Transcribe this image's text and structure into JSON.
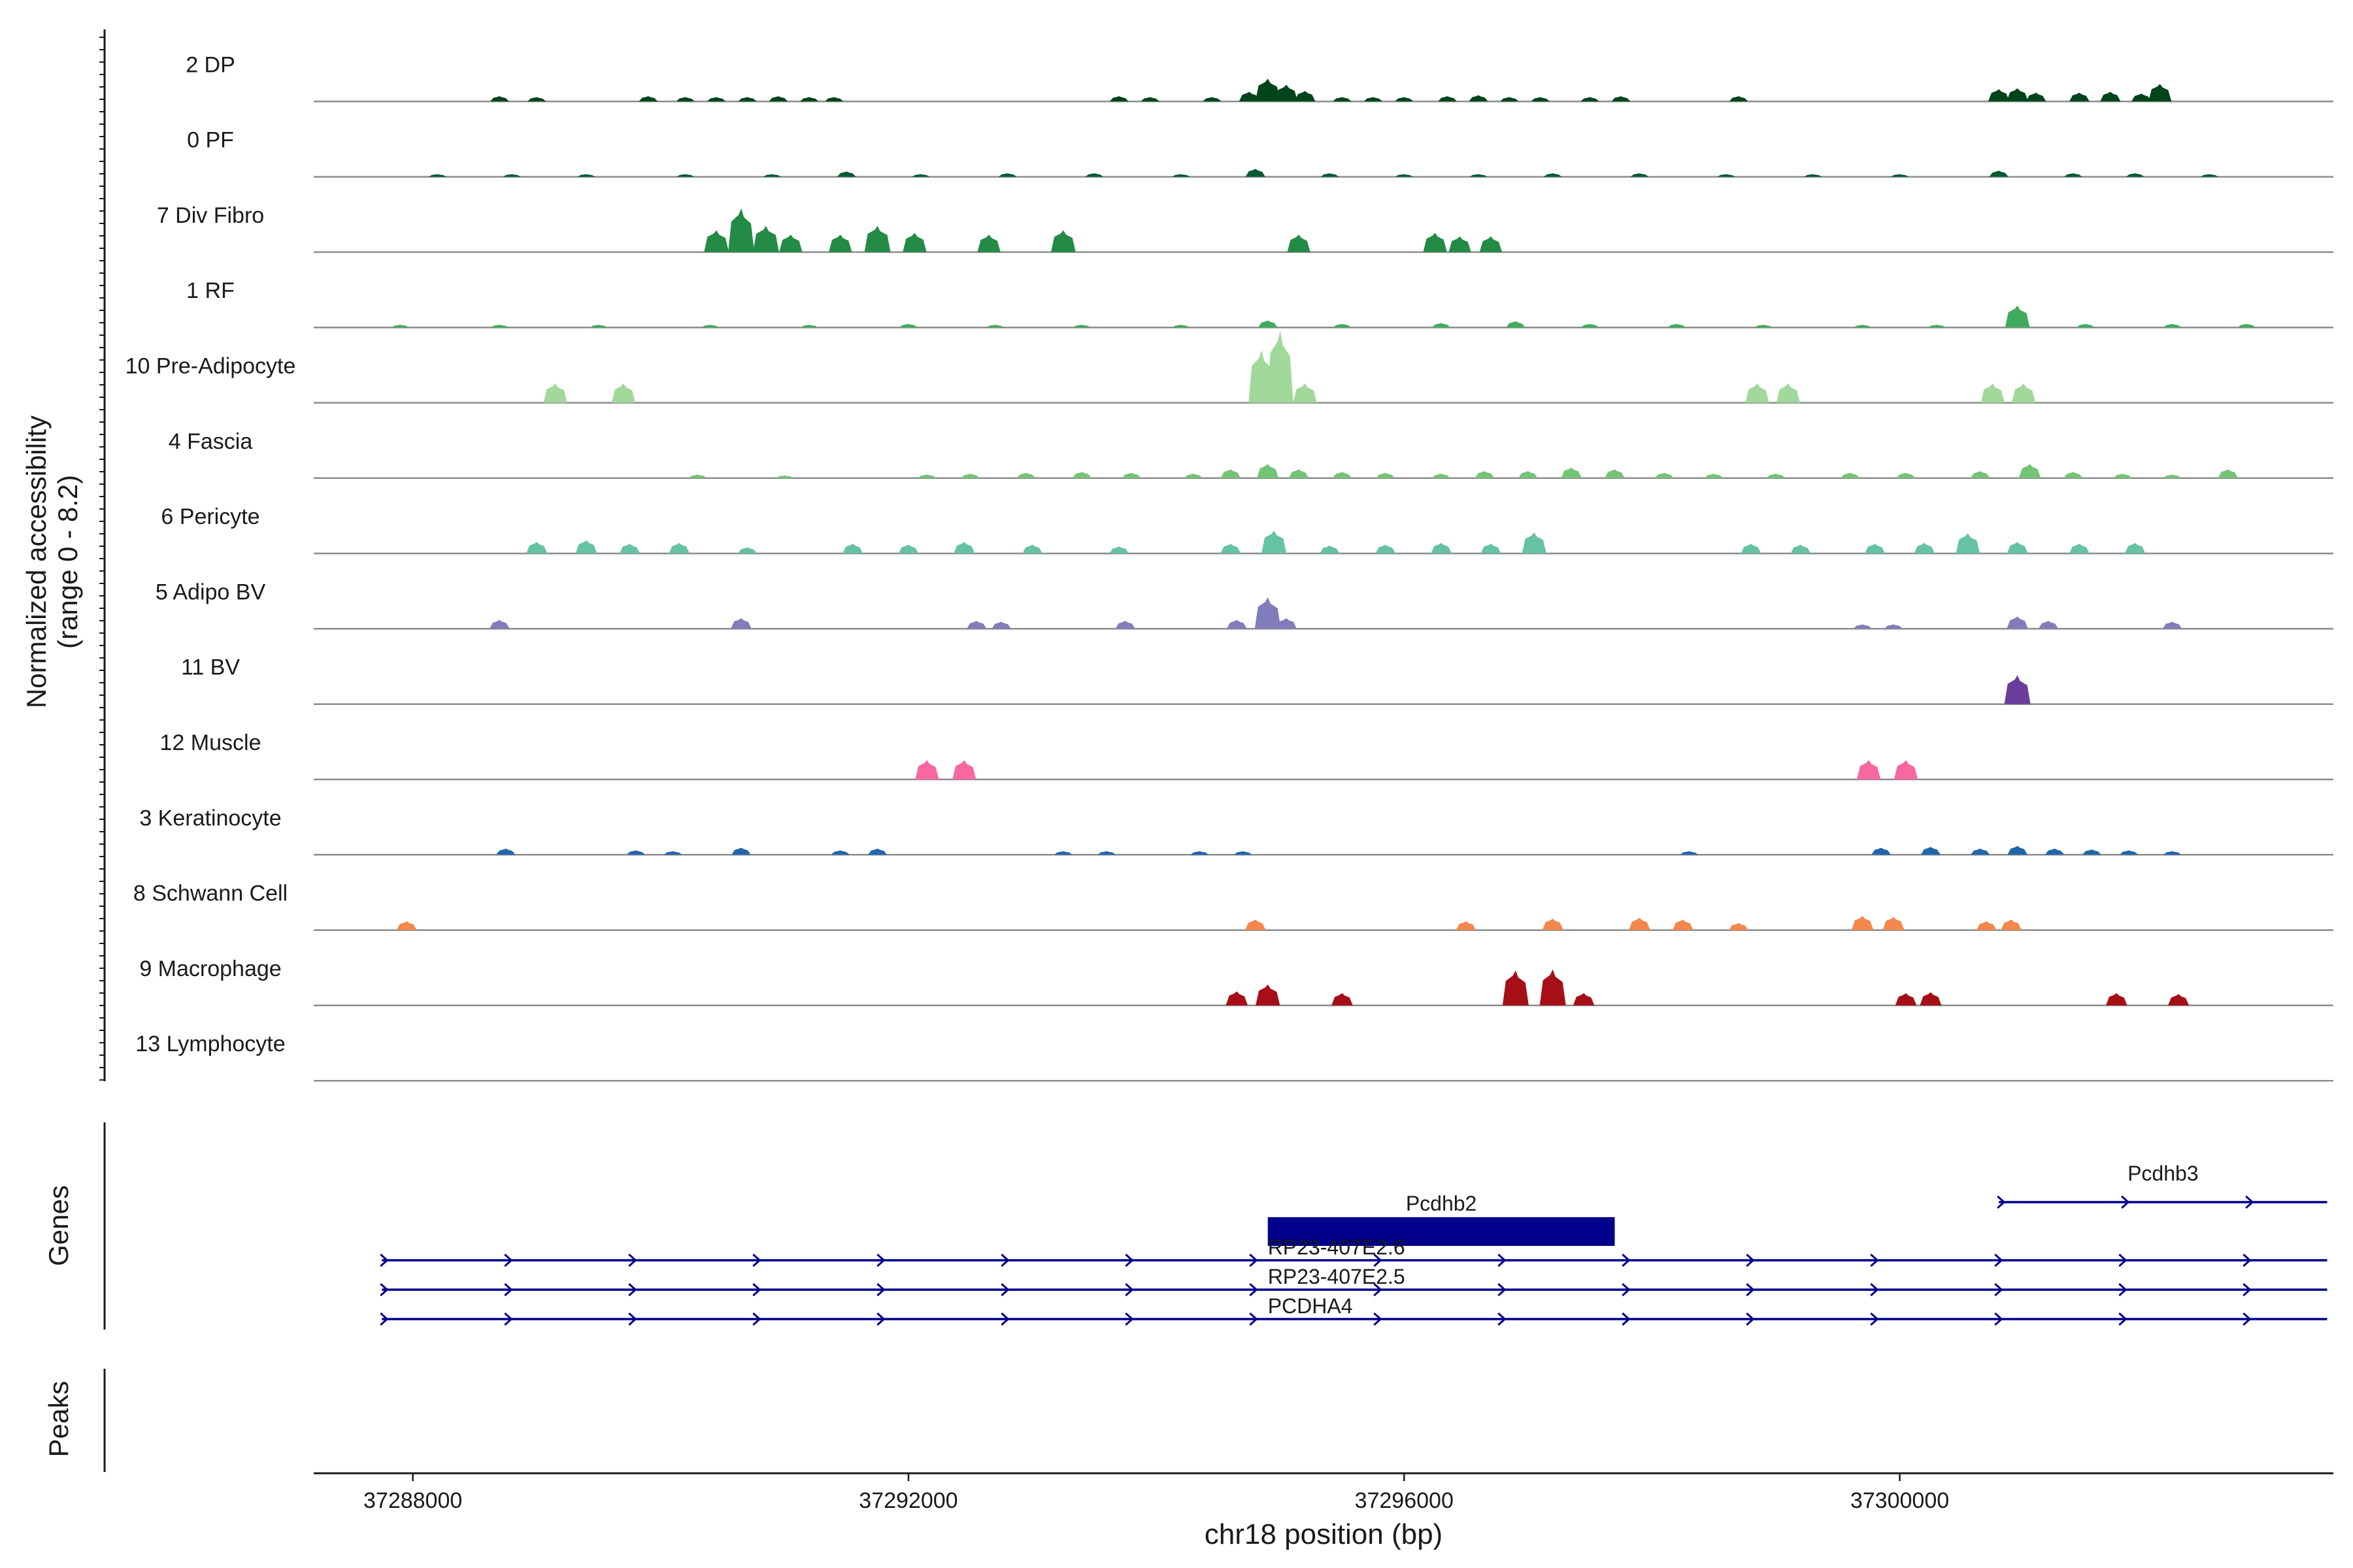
{
  "chart_data": {
    "type": "area",
    "title": "",
    "ylabel": "Normalized accessibility\n(range 0 - 8.2)",
    "xlabel": "chr18 position (bp)",
    "xlim": [
      37287200,
      37303500
    ],
    "ylim": [
      0,
      8.2
    ],
    "x_ticks": [
      37288000,
      37292000,
      37296000,
      37300000
    ],
    "x_tick_labels": [
      "37288000",
      "37292000",
      "37296000",
      "37300000"
    ],
    "tracks": [
      {
        "name": "2 DP",
        "color": "#00441b",
        "peaks": [
          [
            37288700,
            0.6
          ],
          [
            37289000,
            0.5
          ],
          [
            37289900,
            0.6
          ],
          [
            37290200,
            0.5
          ],
          [
            37290450,
            0.5
          ],
          [
            37290700,
            0.5
          ],
          [
            37290950,
            0.6
          ],
          [
            37291200,
            0.5
          ],
          [
            37291400,
            0.5
          ],
          [
            37293700,
            0.6
          ],
          [
            37293950,
            0.5
          ],
          [
            37294450,
            0.5
          ],
          [
            37294750,
            1.1
          ],
          [
            37294900,
            2.6
          ],
          [
            37295050,
            1.9
          ],
          [
            37295200,
            1.2
          ],
          [
            37295500,
            0.5
          ],
          [
            37295750,
            0.5
          ],
          [
            37296000,
            0.5
          ],
          [
            37296350,
            0.6
          ],
          [
            37296600,
            0.7
          ],
          [
            37296850,
            0.5
          ],
          [
            37297100,
            0.5
          ],
          [
            37297500,
            0.5
          ],
          [
            37297750,
            0.6
          ],
          [
            37298700,
            0.6
          ],
          [
            37300800,
            1.4
          ],
          [
            37300950,
            1.5
          ],
          [
            37301100,
            1.0
          ],
          [
            37301450,
            1.0
          ],
          [
            37301700,
            1.1
          ],
          [
            37301950,
            0.9
          ],
          [
            37302100,
            2.0
          ]
        ]
      },
      {
        "name": "0 PF",
        "color": "#005a32",
        "peaks": [
          [
            37288200,
            0.3
          ],
          [
            37288800,
            0.3
          ],
          [
            37289400,
            0.3
          ],
          [
            37290200,
            0.3
          ],
          [
            37290900,
            0.3
          ],
          [
            37291500,
            0.6
          ],
          [
            37292100,
            0.3
          ],
          [
            37292800,
            0.4
          ],
          [
            37293500,
            0.4
          ],
          [
            37294200,
            0.3
          ],
          [
            37294800,
            0.9
          ],
          [
            37295400,
            0.4
          ],
          [
            37296000,
            0.3
          ],
          [
            37296600,
            0.3
          ],
          [
            37297200,
            0.4
          ],
          [
            37297900,
            0.4
          ],
          [
            37298600,
            0.3
          ],
          [
            37299300,
            0.3
          ],
          [
            37300000,
            0.3
          ],
          [
            37300800,
            0.7
          ],
          [
            37301400,
            0.4
          ],
          [
            37301900,
            0.4
          ],
          [
            37302500,
            0.3
          ]
        ]
      },
      {
        "name": "7 Div Fibro",
        "color": "#238b45",
        "peaks": [
          [
            37290450,
            2.5
          ],
          [
            37290650,
            5.0
          ],
          [
            37290850,
            3.0
          ],
          [
            37291050,
            2.0
          ],
          [
            37291450,
            2.0
          ],
          [
            37291750,
            3.0
          ],
          [
            37292050,
            2.2
          ],
          [
            37292650,
            2.0
          ],
          [
            37293250,
            2.5
          ],
          [
            37295150,
            2.0
          ],
          [
            37296250,
            2.2
          ],
          [
            37296450,
            1.8
          ],
          [
            37296700,
            1.8
          ]
        ]
      },
      {
        "name": "1 RF",
        "color": "#41ab5d",
        "peaks": [
          [
            37287900,
            0.3
          ],
          [
            37288700,
            0.3
          ],
          [
            37289500,
            0.3
          ],
          [
            37290400,
            0.3
          ],
          [
            37291200,
            0.3
          ],
          [
            37292000,
            0.4
          ],
          [
            37292700,
            0.3
          ],
          [
            37293400,
            0.3
          ],
          [
            37294200,
            0.3
          ],
          [
            37294900,
            0.8
          ],
          [
            37295500,
            0.4
          ],
          [
            37296300,
            0.5
          ],
          [
            37296900,
            0.7
          ],
          [
            37297500,
            0.4
          ],
          [
            37298200,
            0.4
          ],
          [
            37298900,
            0.3
          ],
          [
            37299700,
            0.3
          ],
          [
            37300300,
            0.3
          ],
          [
            37300950,
            2.5
          ],
          [
            37301500,
            0.4
          ],
          [
            37302200,
            0.4
          ],
          [
            37302800,
            0.4
          ]
        ]
      },
      {
        "name": "10 Pre-Adipocyte",
        "color": "#a1d99b",
        "peaks": [
          [
            37289150,
            2.2
          ],
          [
            37289700,
            2.2
          ],
          [
            37294850,
            6.0
          ],
          [
            37295000,
            8.2
          ],
          [
            37295200,
            2.2
          ],
          [
            37298850,
            2.2
          ],
          [
            37299100,
            2.2
          ],
          [
            37300750,
            2.2
          ],
          [
            37301000,
            2.2
          ]
        ]
      },
      {
        "name": "4 Fascia",
        "color": "#74c476",
        "peaks": [
          [
            37290300,
            0.4
          ],
          [
            37291000,
            0.3
          ],
          [
            37292150,
            0.4
          ],
          [
            37292500,
            0.5
          ],
          [
            37292950,
            0.6
          ],
          [
            37293400,
            0.7
          ],
          [
            37293800,
            0.6
          ],
          [
            37294300,
            0.5
          ],
          [
            37294600,
            1.0
          ],
          [
            37294900,
            1.6
          ],
          [
            37295150,
            1.0
          ],
          [
            37295500,
            0.7
          ],
          [
            37295850,
            0.6
          ],
          [
            37296300,
            0.5
          ],
          [
            37296650,
            0.8
          ],
          [
            37297000,
            0.8
          ],
          [
            37297350,
            1.2
          ],
          [
            37297700,
            1.0
          ],
          [
            37298100,
            0.6
          ],
          [
            37298500,
            0.5
          ],
          [
            37299000,
            0.5
          ],
          [
            37299600,
            0.6
          ],
          [
            37300050,
            0.6
          ],
          [
            37300650,
            0.8
          ],
          [
            37301050,
            1.6
          ],
          [
            37301400,
            0.7
          ],
          [
            37301800,
            0.5
          ],
          [
            37302200,
            0.4
          ],
          [
            37302650,
            1.0
          ]
        ]
      },
      {
        "name": "6 Pericyte",
        "color": "#66c2a4",
        "peaks": [
          [
            37289000,
            1.3
          ],
          [
            37289400,
            1.5
          ],
          [
            37289750,
            1.1
          ],
          [
            37290150,
            1.2
          ],
          [
            37290700,
            0.7
          ],
          [
            37291550,
            1.1
          ],
          [
            37292000,
            1.0
          ],
          [
            37292450,
            1.3
          ],
          [
            37293000,
            1.0
          ],
          [
            37293700,
            0.8
          ],
          [
            37294600,
            1.1
          ],
          [
            37294950,
            2.6
          ],
          [
            37295400,
            0.9
          ],
          [
            37295850,
            1.0
          ],
          [
            37296300,
            1.2
          ],
          [
            37296700,
            1.1
          ],
          [
            37297050,
            2.4
          ],
          [
            37298800,
            1.1
          ],
          [
            37299200,
            1.0
          ],
          [
            37299800,
            1.1
          ],
          [
            37300200,
            1.2
          ],
          [
            37300550,
            2.3
          ],
          [
            37300950,
            1.3
          ],
          [
            37301450,
            1.1
          ],
          [
            37301900,
            1.2
          ]
        ]
      },
      {
        "name": "5 Adipo BV",
        "color": "#807dba",
        "peaks": [
          [
            37288700,
            1.0
          ],
          [
            37290650,
            1.2
          ],
          [
            37292550,
            0.9
          ],
          [
            37292750,
            0.8
          ],
          [
            37293750,
            0.9
          ],
          [
            37294650,
            1.0
          ],
          [
            37294900,
            3.6
          ],
          [
            37295050,
            1.2
          ],
          [
            37299700,
            0.5
          ],
          [
            37299950,
            0.5
          ],
          [
            37300950,
            1.4
          ],
          [
            37301200,
            0.9
          ],
          [
            37302200,
            0.8
          ]
        ]
      },
      {
        "name": "11 BV",
        "color": "#6a3d9a",
        "peaks": [
          [
            37300950,
            3.3
          ]
        ]
      },
      {
        "name": "12 Muscle",
        "color": "#f768a1",
        "peaks": [
          [
            37292150,
            2.2
          ],
          [
            37292450,
            2.2
          ],
          [
            37299750,
            2.2
          ],
          [
            37300050,
            2.2
          ]
        ]
      },
      {
        "name": "3 Keratinocyte",
        "color": "#2166ac",
        "peaks": [
          [
            37288750,
            0.7
          ],
          [
            37289800,
            0.5
          ],
          [
            37290100,
            0.4
          ],
          [
            37290650,
            0.8
          ],
          [
            37291450,
            0.5
          ],
          [
            37291750,
            0.7
          ],
          [
            37293250,
            0.4
          ],
          [
            37293600,
            0.4
          ],
          [
            37294350,
            0.4
          ],
          [
            37294700,
            0.4
          ],
          [
            37298300,
            0.4
          ],
          [
            37299850,
            0.8
          ],
          [
            37300250,
            0.9
          ],
          [
            37300650,
            0.7
          ],
          [
            37300950,
            1.0
          ],
          [
            37301250,
            0.7
          ],
          [
            37301550,
            0.6
          ],
          [
            37301850,
            0.5
          ],
          [
            37302200,
            0.4
          ]
        ]
      },
      {
        "name": "8 Schwann Cell",
        "color": "#f4874b",
        "peaks": [
          [
            37287950,
            1.0
          ],
          [
            37294800,
            1.2
          ],
          [
            37296500,
            1.0
          ],
          [
            37297200,
            1.3
          ],
          [
            37297900,
            1.4
          ],
          [
            37298250,
            1.2
          ],
          [
            37298700,
            0.8
          ],
          [
            37299700,
            1.6
          ],
          [
            37299950,
            1.5
          ],
          [
            37300700,
            1.0
          ],
          [
            37300900,
            1.2
          ]
        ]
      },
      {
        "name": "9 Macrophage",
        "color": "#a50f15",
        "peaks": [
          [
            37294650,
            1.6
          ],
          [
            37294900,
            2.4
          ],
          [
            37295500,
            1.4
          ],
          [
            37296900,
            4.0
          ],
          [
            37297200,
            4.1
          ],
          [
            37297450,
            1.4
          ],
          [
            37300050,
            1.4
          ],
          [
            37300250,
            1.5
          ],
          [
            37301750,
            1.4
          ],
          [
            37302250,
            1.3
          ]
        ]
      },
      {
        "name": "13 Lymphocyte",
        "color": "#6baed6",
        "peaks": []
      }
    ],
    "genes_label": "Genes",
    "peaks_label": "Peaks",
    "genes": [
      {
        "name": "Pcdhb3",
        "start": 37300800,
        "end": 37303450,
        "row": 0,
        "block": false
      },
      {
        "name": "Pcdhb2",
        "start": 37294900,
        "end": 37297700,
        "row": 1,
        "block": true
      },
      {
        "name": "RP23-407E2.6",
        "start": 37287750,
        "end": 37303450,
        "row": 2,
        "block": false
      },
      {
        "name": "RP23-407E2.5",
        "start": 37287750,
        "end": 37303450,
        "row": 3,
        "block": false
      },
      {
        "name": "PCDHA4",
        "start": 37287750,
        "end": 37303450,
        "row": 4,
        "block": false
      }
    ],
    "gene_color": "#00008b"
  }
}
